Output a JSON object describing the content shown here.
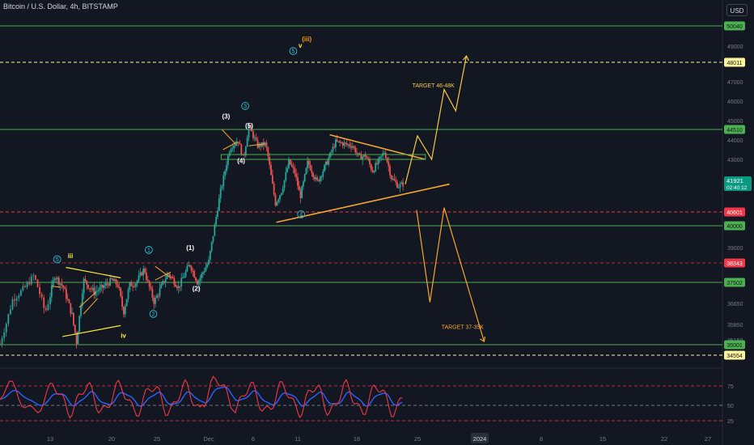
{
  "header": {
    "title": "Bitcoin / U.S. Dollar, 4h, BITSTAMP",
    "currency_button": "USD"
  },
  "chart_data": {
    "type": "candlestick",
    "price_axis": {
      "ticks": [
        49000,
        47000,
        46000,
        45000,
        44000,
        43000,
        42200,
        39000,
        36650,
        35850,
        35150
      ],
      "ylim": [
        34200,
        51000
      ]
    },
    "time_axis": {
      "labels": [
        "13",
        "20",
        "25",
        "Dec",
        "6",
        "11",
        "18",
        "25",
        "2024",
        "8",
        "15",
        "22",
        "27"
      ]
    },
    "last_price": {
      "value": "41921",
      "countdown": "02:40:12"
    },
    "horizontal_levels": [
      {
        "value": 50040,
        "label": "50040",
        "style": "solid",
        "color": "#4caf50",
        "tag_bg": "#4caf50",
        "tag_fg": "#131722"
      },
      {
        "value": 48011,
        "label": "48011",
        "style": "dashed",
        "color": "#fff59d",
        "tag_bg": "#fff59d",
        "tag_fg": "#131722"
      },
      {
        "value": 44510,
        "label": "44510",
        "style": "solid",
        "color": "#4caf50",
        "tag_bg": "#4caf50",
        "tag_fg": "#131722"
      },
      {
        "value": 40601,
        "label": "40601",
        "style": "dashed",
        "color": "#f23645",
        "tag_bg": "#f23645",
        "tag_fg": "#ffffff"
      },
      {
        "value": 40000,
        "label": "40000",
        "style": "solid",
        "color": "#4caf50",
        "tag_bg": "#4caf50",
        "tag_fg": "#131722"
      },
      {
        "value": 38343,
        "label": "38343",
        "style": "dashed",
        "color": "#b22833",
        "tag_bg": "#f23645",
        "tag_fg": "#ffffff"
      },
      {
        "value": 37502,
        "label": "37502",
        "style": "solid",
        "color": "#4caf50",
        "tag_bg": "#4caf50",
        "tag_fg": "#131722"
      },
      {
        "value": 35001,
        "label": "35001",
        "style": "solid",
        "color": "#4caf50",
        "tag_bg": "#4caf50",
        "tag_fg": "#131722"
      },
      {
        "value": 34554,
        "label": "34554",
        "style": "dashed",
        "color": "#fff59d",
        "tag_bg": "#fff59d",
        "tag_fg": "#131722"
      }
    ],
    "annotations": [
      {
        "text": "TARGET 46-48K",
        "price": 46700,
        "day": 23.4,
        "color": "#f7c948"
      },
      {
        "text": "TARGET 37-35K",
        "price": 35650,
        "day": 26.7,
        "color": "#f7a531"
      },
      {
        "text": "(iii)",
        "price": 49250,
        "day": 10.5,
        "color": "#ff9800"
      },
      {
        "text": "v",
        "price": 48900,
        "day": 10.1,
        "color": "#ffeb3b"
      },
      {
        "text": "iii",
        "price": 38550,
        "day": -16.0,
        "color": "#ffeb3b"
      },
      {
        "text": "iv",
        "price": 35250,
        "day": -10.0,
        "color": "#ffeb3b"
      },
      {
        "text": "(1)",
        "price": 38900,
        "day": -2.6,
        "color": "#ffffff"
      },
      {
        "text": "(2)",
        "price": 37150,
        "day": -1.9,
        "color": "#ffffff"
      },
      {
        "text": "(3)",
        "price": 45100,
        "day": 1.5,
        "color": "#ffffff"
      },
      {
        "text": "(5)",
        "price": 44600,
        "day": 4.1,
        "color": "#ffffff"
      },
      {
        "text": "(4)",
        "price": 42850,
        "day": 3.2,
        "color": "#ffffff"
      }
    ],
    "circled_waves": [
      {
        "text": "5",
        "price": 48700,
        "day": 9.5
      },
      {
        "text": "3",
        "price": 45750,
        "day": 4.1
      },
      {
        "text": "1",
        "price": 38900,
        "day": -6.9
      },
      {
        "text": "2",
        "price": 36250,
        "day": -6.4
      },
      {
        "text": "4",
        "price": 40500,
        "day": 10.4
      },
      {
        "text": "5",
        "price": 38500,
        "day": -17.2
      }
    ],
    "rsi": {
      "ticks": [
        75,
        50,
        25
      ],
      "levels": [
        75,
        50,
        25
      ]
    }
  }
}
